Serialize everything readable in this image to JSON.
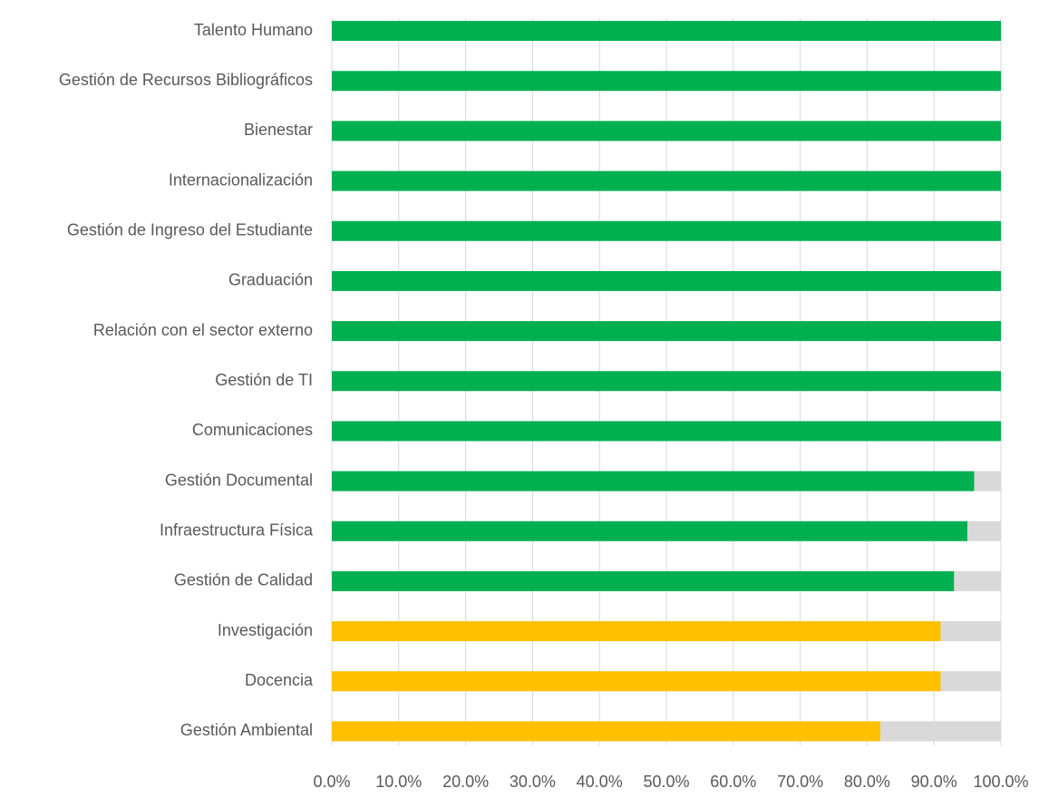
{
  "chart_data": {
    "type": "stacked-barh",
    "categories": [
      "Talento Humano",
      "Gestión de Recursos Bibliográficos",
      "Bienestar",
      "Internacionalización",
      "Gestión de Ingreso del Estudiante",
      "Graduación",
      "Relación con el sector externo",
      "Gestión de TI",
      "Comunicaciones",
      "Gestión Documental",
      "Infraestructura Física",
      "Gestión de Calidad",
      "Investigación",
      "Docencia",
      "Gestión Ambiental"
    ],
    "series": [
      {
        "colors": [
          "#00b050",
          "#00b050",
          "#00b050",
          "#00b050",
          "#00b050",
          "#00b050",
          "#00b050",
          "#00b050",
          "#00b050",
          "#00b050",
          "#00b050",
          "#00b050",
          "#ffc000",
          "#ffc000",
          "#ffc000"
        ],
        "values": [
          100,
          100,
          100,
          100,
          100,
          100,
          100,
          100,
          100,
          96,
          95,
          93,
          91,
          91,
          82
        ]
      },
      {
        "color": "#d9d9d9",
        "values": [
          0,
          0,
          0,
          0,
          0,
          0,
          0,
          0,
          0,
          4,
          5,
          7,
          9,
          9,
          18
        ]
      }
    ],
    "xlim": [
      0,
      100
    ],
    "xticks": [
      {
        "value": 0,
        "label": "0.0%"
      },
      {
        "value": 10,
        "label": "10.0%"
      },
      {
        "value": 20,
        "label": "20.0%"
      },
      {
        "value": 30,
        "label": "30.0%"
      },
      {
        "value": 40,
        "label": "40.0%"
      },
      {
        "value": 50,
        "label": "50.0%"
      },
      {
        "value": 60,
        "label": "60.0%"
      },
      {
        "value": 70,
        "label": "70.0%"
      },
      {
        "value": 80,
        "label": "80.0%"
      },
      {
        "value": 90,
        "label": "90.0%"
      },
      {
        "value": 100,
        "label": "100.0%"
      }
    ],
    "grid": true
  }
}
